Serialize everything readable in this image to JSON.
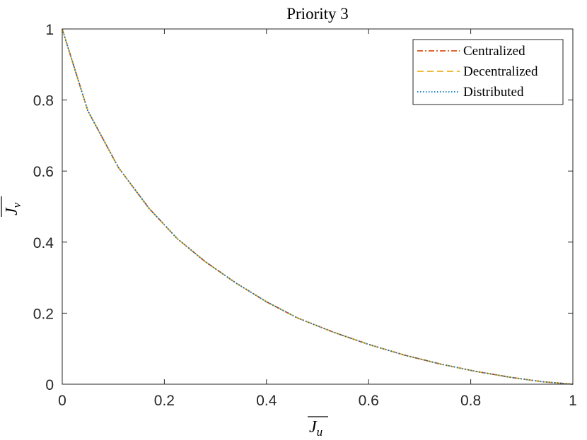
{
  "chart_data": {
    "type": "line",
    "title": "Priority 3",
    "xlabel": {
      "base": "J",
      "subscript": "u"
    },
    "ylabel": {
      "base": "J",
      "subscript": "v"
    },
    "xlim": [
      0,
      1
    ],
    "ylim": [
      0,
      1
    ],
    "xticks": [
      0,
      0.2,
      0.4,
      0.6,
      0.8,
      1
    ],
    "yticks": [
      0,
      0.2,
      0.4,
      0.6,
      0.8,
      1
    ],
    "xtick_labels": [
      "0",
      "0.2",
      "0.4",
      "0.6",
      "0.8",
      "1"
    ],
    "ytick_labels": [
      "0",
      "0.2",
      "0.4",
      "0.6",
      "0.8",
      "1"
    ],
    "grid": false,
    "legend_position": "top-right",
    "x": [
      0,
      0.05,
      0.11,
      0.17,
      0.225,
      0.28,
      0.34,
      0.4,
      0.46,
      0.53,
      0.6,
      0.67,
      0.74,
      0.81,
      0.88,
      0.94,
      1.0
    ],
    "series": [
      {
        "name": "Centralized",
        "color": "#D95319",
        "dash": "dashdot",
        "values": [
          1,
          0.77,
          0.61,
          0.495,
          0.41,
          0.345,
          0.285,
          0.232,
          0.187,
          0.147,
          0.112,
          0.082,
          0.057,
          0.036,
          0.019,
          0.007,
          0
        ]
      },
      {
        "name": "Decentralized",
        "color": "#EDB120",
        "dash": "dashed",
        "values": [
          1,
          0.77,
          0.61,
          0.495,
          0.41,
          0.345,
          0.285,
          0.232,
          0.187,
          0.147,
          0.112,
          0.082,
          0.057,
          0.036,
          0.019,
          0.007,
          0
        ]
      },
      {
        "name": "Distributed",
        "color": "#0072BD",
        "dash": "dotted",
        "values": [
          1,
          0.77,
          0.61,
          0.495,
          0.41,
          0.345,
          0.285,
          0.232,
          0.187,
          0.147,
          0.112,
          0.082,
          0.057,
          0.036,
          0.019,
          0.007,
          0
        ]
      }
    ]
  }
}
